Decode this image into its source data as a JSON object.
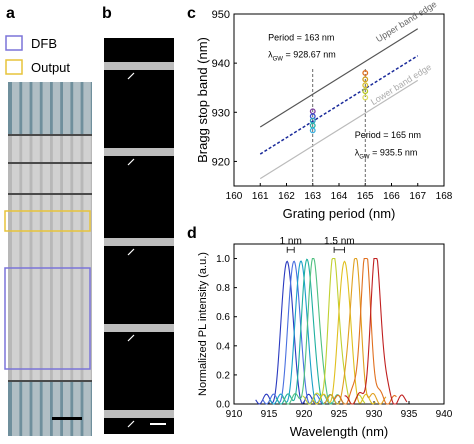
{
  "panels": {
    "a": {
      "label": "a",
      "legend": [
        {
          "name": "DFB",
          "color": "#7b74d8"
        },
        {
          "name": "Output",
          "color": "#e7c43a"
        }
      ]
    },
    "b": {
      "label": "b"
    },
    "c": {
      "label": "c"
    },
    "d": {
      "label": "d"
    }
  },
  "chart_data": [
    {
      "panel": "c",
      "type": "line",
      "xlabel": "Grating period (nm)",
      "ylabel": "Bragg stop band (nm)",
      "xlim": [
        160,
        168
      ],
      "ylim": [
        915,
        950
      ],
      "xticks": [
        160,
        161,
        162,
        163,
        164,
        165,
        166,
        167,
        168
      ],
      "yticks": [
        920,
        930,
        940,
        950
      ],
      "series": [
        {
          "name": "Upper band edge",
          "color": "#555555",
          "x": [
            161,
            167
          ],
          "y": [
            927,
            947
          ]
        },
        {
          "name": "Lower band edge",
          "color": "#bbbbbb",
          "x": [
            161,
            167
          ],
          "y": [
            916.5,
            936.5
          ]
        },
        {
          "name": "",
          "color": "#1a2a9a",
          "dashed": true,
          "x": [
            161,
            167
          ],
          "y": [
            921.5,
            941.5
          ]
        }
      ],
      "vlines": [
        163,
        165
      ],
      "points": [
        {
          "x": 163,
          "y": 930.2,
          "color": "#7b3fa0"
        },
        {
          "x": 163,
          "y": 929.2,
          "color": "#3a4fd0"
        },
        {
          "x": 163,
          "y": 928.3,
          "color": "#2aa0c0"
        },
        {
          "x": 163,
          "y": 927.3,
          "color": "#22b0a8"
        },
        {
          "x": 163,
          "y": 926.3,
          "color": "#3ab0e0"
        },
        {
          "x": 165,
          "y": 938.0,
          "color": "#e07020"
        },
        {
          "x": 165,
          "y": 936.7,
          "color": "#d0a020"
        },
        {
          "x": 165,
          "y": 935.5,
          "color": "#d8c030"
        },
        {
          "x": 165,
          "y": 934.3,
          "color": "#b8c820"
        },
        {
          "x": 165,
          "y": 933.0,
          "color": "#e0e060"
        }
      ],
      "annotations": [
        {
          "lines": [
            "Period = 163 nm",
            "λ",
            "GW",
            " = 928.67 nm"
          ]
        },
        {
          "lines": [
            "Period = 165 nm",
            "λ",
            "GW",
            " = 935.5 nm"
          ]
        }
      ]
    },
    {
      "panel": "d",
      "type": "line",
      "xlabel": "Wavelength (nm)",
      "ylabel": "Normalized PL intensity (a.u.)",
      "xlim": [
        910,
        940
      ],
      "ylim": [
        0,
        1.1
      ],
      "xticks": [
        910,
        915,
        920,
        925,
        930,
        935,
        940
      ],
      "yticks": [
        0.0,
        0.2,
        0.4,
        0.6,
        0.8,
        1.0
      ],
      "annotations": [
        "1 nm",
        "1.5 nm"
      ],
      "series": [
        {
          "color": "#2a3ac0",
          "peak": 917.6
        },
        {
          "color": "#4a70e0",
          "peak": 918.6
        },
        {
          "color": "#1aa0c8",
          "peak": 919.6
        },
        {
          "color": "#20b0a0",
          "peak": 920.5
        },
        {
          "color": "#50c080",
          "peak": 921.4
        },
        {
          "color": "#c0d030",
          "peak": 924.3
        },
        {
          "color": "#e0c020",
          "peak": 925.8
        },
        {
          "color": "#e0a020",
          "peak": 927.3
        },
        {
          "color": "#e07020",
          "peak": 928.8
        },
        {
          "color": "#c02020",
          "peak": 930.3
        }
      ]
    }
  ]
}
